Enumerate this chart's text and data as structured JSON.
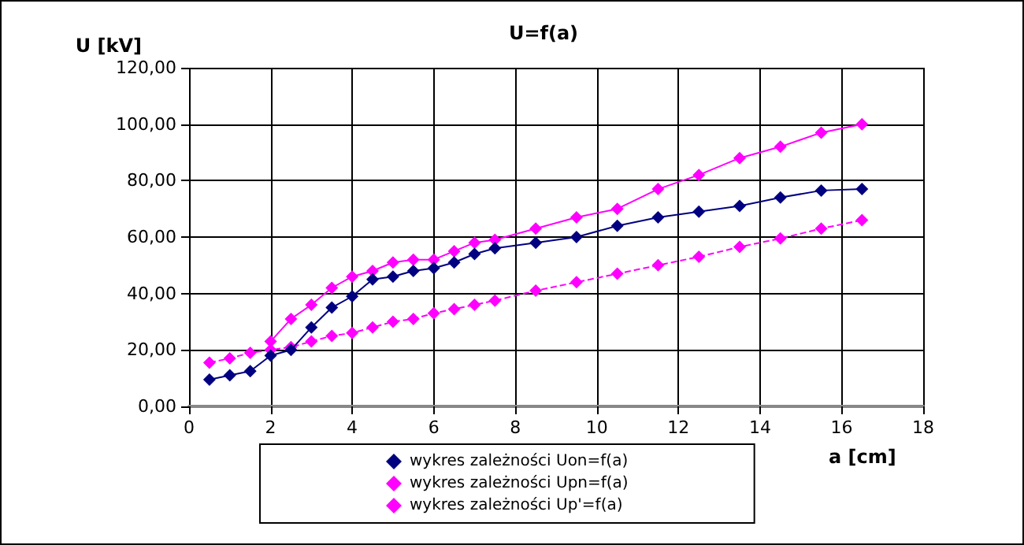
{
  "chart_data": {
    "type": "line",
    "title": "U=f(a)",
    "xlabel": "a [cm]",
    "ylabel": "U [kV]",
    "x": [
      0.5,
      1,
      1.5,
      2,
      2.5,
      3,
      3.5,
      4,
      4.5,
      5,
      5.5,
      6,
      6.5,
      7,
      7.5,
      8.5,
      9.5,
      10.5,
      11.5,
      12.5,
      13.5,
      14.5,
      15.5,
      16.5
    ],
    "series": [
      {
        "name": "wykres zależności Uon=f(a)",
        "color": "#000080",
        "values": [
          9.5,
          11,
          12.5,
          18,
          20,
          28,
          35,
          39,
          45,
          46,
          48,
          49,
          51,
          54,
          56,
          58,
          60,
          64,
          67,
          69,
          71,
          74,
          76.5,
          77
        ]
      },
      {
        "name": "wykres zależności Upn=f(a)",
        "color": "#ff00ff",
        "values": [
          null,
          null,
          null,
          23,
          31,
          36,
          42,
          46,
          48,
          51,
          52,
          52,
          55,
          58,
          59,
          63,
          67,
          70,
          77,
          82,
          88,
          92,
          97,
          100
        ]
      },
      {
        "name": "wykres zależności Up'=f(a)",
        "color": "#ff00ff",
        "line_style": "dashed",
        "values": [
          15.5,
          17,
          19,
          20,
          21,
          23,
          25,
          26,
          28,
          30,
          31,
          33,
          34.5,
          36,
          37.5,
          41,
          44,
          47,
          50,
          53,
          56.5,
          59.5,
          63,
          66
        ]
      }
    ],
    "xlim": [
      0,
      18
    ],
    "xticks": [
      0,
      2,
      4,
      6,
      8,
      10,
      12,
      14,
      16,
      18
    ],
    "ylim": [
      0,
      120
    ],
    "yticks": [
      {
        "value": 0,
        "label": "0,00"
      },
      {
        "value": 20,
        "label": "20,00"
      },
      {
        "value": 40,
        "label": "40,00"
      },
      {
        "value": 60,
        "label": "60,00"
      },
      {
        "value": 80,
        "label": "80,00"
      },
      {
        "value": 100,
        "label": "100,00"
      },
      {
        "value": 120,
        "label": "120,00"
      }
    ],
    "grid": true,
    "legend": "bottom",
    "marker": "diamond",
    "line_style": "solid"
  }
}
